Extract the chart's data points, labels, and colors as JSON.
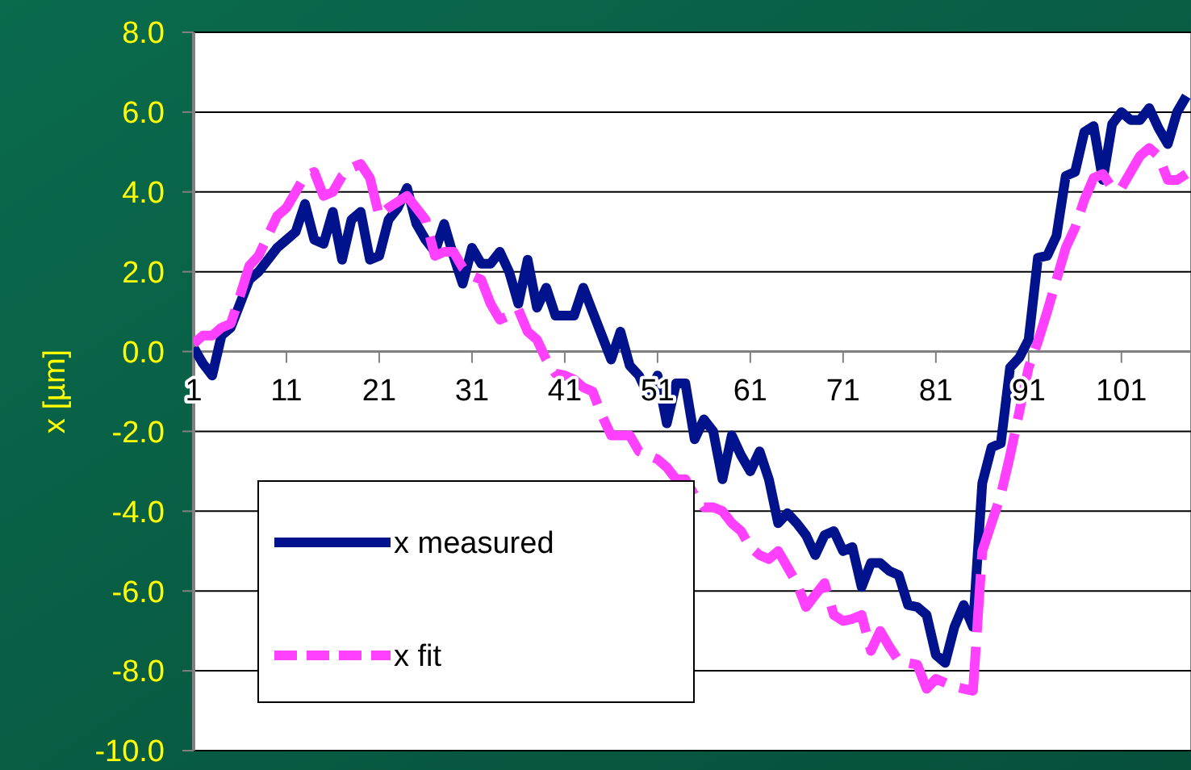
{
  "chart_data": {
    "type": "line",
    "ylabel": "x [µm]",
    "x": [
      1,
      2,
      3,
      4,
      5,
      6,
      7,
      8,
      9,
      10,
      11,
      12,
      13,
      14,
      15,
      16,
      17,
      18,
      19,
      20,
      21,
      22,
      23,
      24,
      25,
      26,
      27,
      28,
      29,
      30,
      31,
      32,
      33,
      34,
      35,
      36,
      37,
      38,
      39,
      40,
      41,
      42,
      43,
      44,
      45,
      46,
      47,
      48,
      49,
      50,
      51,
      52,
      53,
      54,
      55,
      56,
      57,
      58,
      59,
      60,
      61,
      62,
      63,
      64,
      65,
      66,
      67,
      68,
      69,
      70,
      71,
      72,
      73,
      74,
      75,
      76,
      77,
      78,
      79,
      80,
      81,
      82,
      83,
      84,
      85,
      86,
      87,
      88,
      89,
      90,
      91,
      92,
      93,
      94,
      95,
      96,
      97,
      98,
      99,
      100,
      101,
      102,
      103,
      104,
      105,
      106,
      107,
      108
    ],
    "xlim": [
      1,
      108.5
    ],
    "xticks": [
      1,
      11,
      21,
      31,
      41,
      51,
      61,
      71,
      81,
      91,
      101
    ],
    "ylim": [
      -10,
      8
    ],
    "yticks": [
      {
        "value": -10,
        "label": "-10.0"
      },
      {
        "value": -8,
        "label": "-8.0"
      },
      {
        "value": -6,
        "label": "-6.0"
      },
      {
        "value": -4,
        "label": "-4.0"
      },
      {
        "value": -2,
        "label": "-2.0"
      },
      {
        "value": 0,
        "label": "0.0"
      },
      {
        "value": 2,
        "label": "2.0"
      },
      {
        "value": 4,
        "label": "4.0"
      },
      {
        "value": 6,
        "label": "6.0"
      },
      {
        "value": 8,
        "label": "8.0"
      }
    ],
    "grid": "y",
    "legend": "bottom left",
    "marker": "none",
    "series": [
      {
        "name": "x measured",
        "color": "#00128c",
        "line_style": "solid",
        "values": [
          0.1,
          -0.3,
          -0.6,
          0.4,
          0.6,
          1.2,
          1.8,
          2.0,
          2.3,
          2.6,
          2.8,
          3.0,
          3.7,
          2.8,
          2.7,
          3.5,
          2.3,
          3.3,
          3.5,
          2.3,
          2.4,
          3.3,
          3.6,
          4.1,
          3.2,
          2.8,
          2.5,
          3.2,
          2.4,
          1.7,
          2.6,
          2.2,
          2.2,
          2.5,
          2.0,
          1.2,
          2.3,
          1.1,
          1.6,
          0.9,
          0.9,
          0.9,
          1.6,
          1.0,
          0.4,
          -0.2,
          0.5,
          -0.35,
          -0.6,
          -1.1,
          -0.6,
          -1.8,
          -0.8,
          -0.8,
          -2.2,
          -1.7,
          -2.0,
          -3.2,
          -2.1,
          -2.6,
          -3.0,
          -2.5,
          -3.2,
          -4.3,
          -4.05,
          -4.3,
          -4.6,
          -5.1,
          -4.6,
          -4.5,
          -5.0,
          -4.9,
          -5.9,
          -5.3,
          -5.3,
          -5.5,
          -5.6,
          -6.35,
          -6.4,
          -6.6,
          -7.6,
          -7.8,
          -6.9,
          -6.35,
          -6.9,
          -3.3,
          -2.4,
          -2.3,
          -0.4,
          -0.15,
          0.3,
          2.35,
          2.4,
          2.9,
          4.4,
          4.5,
          5.5,
          5.65,
          4.3,
          5.7,
          6.0,
          5.8,
          5.8,
          6.1,
          5.6,
          5.2,
          6.0,
          6.4
        ]
      },
      {
        "name": "x fit",
        "color": "#ff40ff",
        "line_style": "dashed",
        "values": [
          0.2,
          0.4,
          0.4,
          0.6,
          0.7,
          1.4,
          2.15,
          2.4,
          2.9,
          3.4,
          3.6,
          4.0,
          4.4,
          4.5,
          3.9,
          4.0,
          4.4,
          4.6,
          4.7,
          4.35,
          3.4,
          3.6,
          3.75,
          3.9,
          3.6,
          3.3,
          2.4,
          2.5,
          2.5,
          2.1,
          1.9,
          1.8,
          1.2,
          0.8,
          0.9,
          1.05,
          0.5,
          0.3,
          -0.2,
          -0.55,
          -0.6,
          -0.7,
          -0.9,
          -1.0,
          -1.6,
          -2.1,
          -2.1,
          -2.1,
          -2.5,
          -2.6,
          -2.7,
          -2.9,
          -3.2,
          -3.2,
          -3.6,
          -3.9,
          -3.9,
          -4.0,
          -4.3,
          -4.5,
          -4.9,
          -5.1,
          -5.2,
          -5.0,
          -5.4,
          -5.8,
          -6.4,
          -6.1,
          -5.8,
          -6.6,
          -6.75,
          -6.7,
          -6.6,
          -7.5,
          -7.0,
          -7.4,
          -7.75,
          -7.8,
          -7.85,
          -8.45,
          -8.2,
          -8.3,
          -8.4,
          -8.45,
          -8.5,
          -5.0,
          -4.3,
          -3.6,
          -2.6,
          -1.5,
          -0.4,
          0.25,
          1.0,
          1.8,
          2.6,
          3.1,
          3.8,
          4.35,
          4.45,
          4.1,
          4.1,
          4.5,
          4.9,
          5.1,
          4.9,
          4.3,
          4.3,
          4.45
        ]
      }
    ]
  }
}
